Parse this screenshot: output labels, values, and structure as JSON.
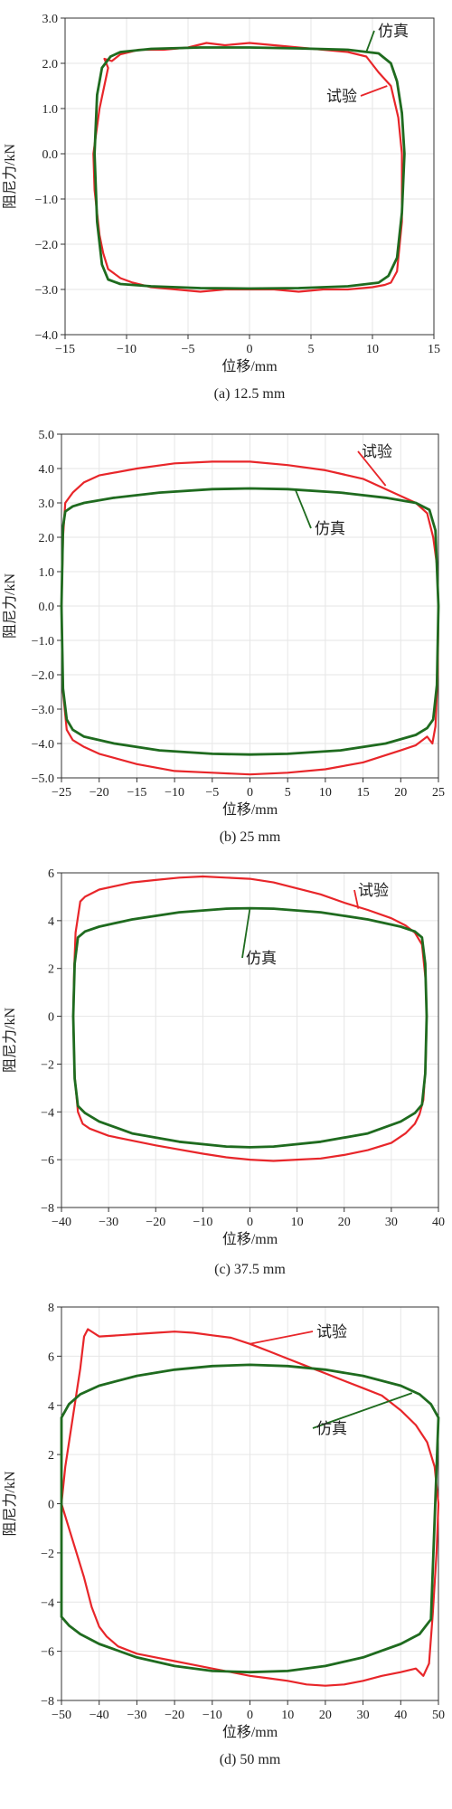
{
  "chart_data": [
    {
      "type": "line",
      "caption": "(a) 12.5 mm",
      "xlabel": "位移/mm",
      "ylabel": "阻尼力/kN",
      "xlim": [
        -15,
        15
      ],
      "ylim": [
        -4,
        3
      ],
      "xticks": [
        "−15",
        "−10",
        "−5",
        "0",
        "5",
        "10",
        "15"
      ],
      "yticks": [
        "−4.0",
        "−3.0",
        "−2.0",
        "−1.0",
        "0.0",
        "1.0",
        "2.0",
        "3.0"
      ],
      "grid": true,
      "annotations": [
        {
          "text": "仿真",
          "series": "sim"
        },
        {
          "text": "试验",
          "series": "exp"
        }
      ],
      "series": [
        {
          "name": "试验",
          "color": "#e8262a",
          "x": [
            -12.7,
            -12.2,
            -11.5,
            -11.8,
            -11.2,
            -10.5,
            -9,
            -7,
            -5,
            -3.5,
            -2,
            0,
            2,
            4,
            6,
            8,
            9.5,
            10.5,
            11.5,
            12.1,
            12.4,
            12.4,
            12.0,
            11.7,
            11.5,
            11.0,
            10,
            8,
            6,
            4,
            2,
            0,
            -2,
            -4,
            -6,
            -8,
            -9.5,
            -10.5,
            -11.5,
            -11.9,
            -12.2,
            -12.6,
            -12.7
          ],
          "y": [
            0.0,
            1.0,
            1.9,
            2.1,
            2.05,
            2.2,
            2.3,
            2.3,
            2.35,
            2.45,
            2.4,
            2.45,
            2.4,
            2.35,
            2.3,
            2.25,
            2.15,
            1.8,
            1.5,
            0.8,
            0.0,
            -1.5,
            -2.6,
            -2.75,
            -2.85,
            -2.9,
            -2.95,
            -3.0,
            -3.0,
            -3.05,
            -3.0,
            -3.0,
            -3.0,
            -3.05,
            -3.0,
            -2.95,
            -2.85,
            -2.75,
            -2.55,
            -2.2,
            -1.8,
            -0.8,
            0.0
          ]
        },
        {
          "name": "仿真",
          "color": "#1f6b1f",
          "x": [
            -12.6,
            -12.4,
            -12.0,
            -11.3,
            -10.5,
            -8,
            -4,
            0,
            4,
            8,
            10.5,
            11.5,
            12.0,
            12.4,
            12.6,
            12.4,
            12.0,
            11.3,
            10.5,
            8,
            4,
            0,
            -4,
            -8,
            -10.5,
            -11.5,
            -12.0,
            -12.4,
            -12.6
          ],
          "y": [
            0.0,
            1.3,
            1.9,
            2.15,
            2.25,
            2.32,
            2.35,
            2.35,
            2.33,
            2.3,
            2.22,
            2.0,
            1.6,
            0.9,
            0.0,
            -1.3,
            -2.3,
            -2.7,
            -2.85,
            -2.93,
            -2.97,
            -2.98,
            -2.97,
            -2.93,
            -2.88,
            -2.78,
            -2.45,
            -1.5,
            0.0
          ]
        }
      ]
    },
    {
      "type": "line",
      "caption": "(b) 25 mm",
      "xlabel": "位移/mm",
      "ylabel": "阻尼力/kN",
      "xlim": [
        -25,
        25
      ],
      "ylim": [
        -5,
        5
      ],
      "xticks": [
        "−25",
        "−20",
        "−15",
        "−10",
        "−5",
        "0",
        "5",
        "10",
        "15",
        "20",
        "25"
      ],
      "yticks": [
        "−5.0",
        "−4.0",
        "−3.0",
        "−2.0",
        "−1.0",
        "0.0",
        "1.0",
        "2.0",
        "3.0",
        "4.0",
        "5.0"
      ],
      "grid": true,
      "annotations": [
        {
          "text": "试验",
          "series": "exp"
        },
        {
          "text": "仿真",
          "series": "sim"
        }
      ],
      "series": [
        {
          "name": "试验",
          "color": "#e8262a",
          "x": [
            -25,
            -24.8,
            -24.5,
            -23.5,
            -22,
            -20,
            -15,
            -10,
            -5,
            0,
            5,
            10,
            15,
            20,
            22,
            23.5,
            24.3,
            24.8,
            25,
            24.9,
            24.6,
            24.2,
            23.5,
            22,
            20,
            15,
            10,
            5,
            0,
            -5,
            -10,
            -15,
            -20,
            -22,
            -23.5,
            -24.3,
            -24.8,
            -25
          ],
          "y": [
            0.0,
            2.0,
            3.0,
            3.3,
            3.6,
            3.8,
            4.0,
            4.15,
            4.2,
            4.2,
            4.1,
            3.95,
            3.7,
            3.2,
            3.0,
            2.7,
            2.0,
            1.2,
            0.0,
            -2.0,
            -3.5,
            -4.0,
            -3.8,
            -4.05,
            -4.2,
            -4.55,
            -4.75,
            -4.85,
            -4.9,
            -4.85,
            -4.8,
            -4.6,
            -4.3,
            -4.1,
            -3.9,
            -3.6,
            -2.5,
            0.0
          ]
        },
        {
          "name": "仿真",
          "color": "#1f6b1f",
          "x": [
            -25,
            -24.8,
            -24.5,
            -23.5,
            -22,
            -18,
            -12,
            -5,
            0,
            5,
            12,
            18,
            22,
            23.8,
            24.6,
            25,
            24.8,
            24.3,
            23.5,
            22,
            18,
            12,
            5,
            0,
            -5,
            -12,
            -18,
            -22,
            -23.5,
            -24.3,
            -24.8,
            -25
          ],
          "y": [
            0.0,
            2.3,
            2.75,
            2.9,
            3.0,
            3.15,
            3.3,
            3.4,
            3.42,
            3.4,
            3.3,
            3.15,
            3.0,
            2.8,
            2.2,
            0.0,
            -2.3,
            -3.3,
            -3.55,
            -3.75,
            -4.0,
            -4.2,
            -4.3,
            -4.32,
            -4.3,
            -4.2,
            -4.0,
            -3.8,
            -3.6,
            -3.3,
            -2.4,
            0.0
          ]
        }
      ]
    },
    {
      "type": "line",
      "caption": "(c) 37.5 mm",
      "xlabel": "位移/mm",
      "ylabel": "阻尼力/kN",
      "xlim": [
        -40,
        40
      ],
      "ylim": [
        -8,
        6
      ],
      "xticks": [
        "−40",
        "−30",
        "−20",
        "−10",
        "0",
        "10",
        "20",
        "30",
        "40"
      ],
      "yticks": [
        "−8",
        "−6",
        "−4",
        "−2",
        "0",
        "2",
        "4",
        "6"
      ],
      "grid": true,
      "annotations": [
        {
          "text": "试验",
          "series": "exp"
        },
        {
          "text": "仿真",
          "series": "sim"
        }
      ],
      "series": [
        {
          "name": "试验",
          "color": "#e8262a",
          "x": [
            -37.5,
            -37.3,
            -37,
            -36,
            -35,
            -32,
            -25,
            -20,
            -15,
            -10,
            -5,
            0,
            5,
            10,
            15,
            20,
            25,
            30,
            33,
            35,
            36.5,
            37.3,
            37.5,
            37.3,
            36.8,
            36,
            35,
            33,
            30,
            25,
            20,
            15,
            10,
            5,
            0,
            -5,
            -10,
            -20,
            -30,
            -34,
            -35.5,
            -36.5,
            -37.2,
            -37.5
          ],
          "y": [
            0.0,
            2.0,
            3.5,
            4.8,
            5.0,
            5.3,
            5.6,
            5.7,
            5.8,
            5.85,
            5.8,
            5.75,
            5.6,
            5.35,
            5.1,
            4.75,
            4.45,
            4.1,
            3.8,
            3.5,
            3.0,
            1.5,
            0.0,
            -2.0,
            -3.5,
            -4.1,
            -4.5,
            -4.9,
            -5.3,
            -5.6,
            -5.8,
            -5.95,
            -6.0,
            -6.05,
            -6.0,
            -5.9,
            -5.75,
            -5.4,
            -5.0,
            -4.7,
            -4.5,
            -4.0,
            -2.5,
            0.0
          ]
        },
        {
          "name": "仿真",
          "color": "#1f6b1f",
          "x": [
            -37.5,
            -37.2,
            -36.5,
            -35,
            -32,
            -25,
            -15,
            -5,
            0,
            5,
            15,
            25,
            32,
            35,
            36.5,
            37.2,
            37.5,
            37.2,
            36.5,
            35,
            32,
            25,
            15,
            5,
            0,
            -5,
            -15,
            -25,
            -32,
            -35,
            -36.5,
            -37.2,
            -37.5
          ],
          "y": [
            0.0,
            2.2,
            3.3,
            3.55,
            3.75,
            4.05,
            4.35,
            4.5,
            4.52,
            4.5,
            4.35,
            4.05,
            3.75,
            3.55,
            3.3,
            2.2,
            0.0,
            -2.4,
            -3.7,
            -4.05,
            -4.4,
            -4.9,
            -5.25,
            -5.45,
            -5.48,
            -5.45,
            -5.25,
            -4.9,
            -4.4,
            -4.05,
            -3.75,
            -2.6,
            0.0
          ]
        }
      ]
    },
    {
      "type": "line",
      "caption": "(d) 50 mm",
      "xlabel": "位移/mm",
      "ylabel": "阻尼力/kN",
      "xlim": [
        -50,
        50
      ],
      "ylim": [
        -8,
        8
      ],
      "xticks": [
        "−50",
        "−40",
        "−30",
        "−20",
        "−10",
        "0",
        "10",
        "20",
        "30",
        "40",
        "50"
      ],
      "yticks": [
        "−8",
        "−6",
        "−4",
        "−2",
        "0",
        "2",
        "4",
        "6",
        "8"
      ],
      "grid": true,
      "annotations": [
        {
          "text": "试验",
          "series": "exp"
        },
        {
          "text": "仿真",
          "series": "sim"
        }
      ],
      "series": [
        {
          "name": "试验",
          "color": "#e8262a",
          "x": [
            -50,
            -49,
            -47,
            -45,
            -44,
            -43,
            -40,
            -35,
            -30,
            -25,
            -20,
            -15,
            -10,
            -5,
            0,
            5,
            10,
            15,
            20,
            25,
            30,
            35,
            40,
            44,
            47,
            49,
            50,
            49.5,
            48.5,
            47.5,
            46,
            44,
            40,
            35,
            30,
            25,
            20,
            15,
            10,
            5,
            0,
            -5,
            -10,
            -15,
            -20,
            -25,
            -30,
            -35,
            -38,
            -40,
            -42,
            -44,
            -46,
            -48,
            -50
          ],
          "y": [
            0.0,
            1.5,
            3.5,
            5.5,
            6.8,
            7.1,
            6.8,
            6.85,
            6.9,
            6.95,
            7.0,
            6.95,
            6.85,
            6.75,
            6.5,
            6.2,
            5.9,
            5.6,
            5.3,
            5.0,
            4.7,
            4.4,
            3.8,
            3.2,
            2.5,
            1.5,
            0.0,
            -2.0,
            -4.5,
            -6.5,
            -7.0,
            -6.7,
            -6.85,
            -7.0,
            -7.2,
            -7.35,
            -7.4,
            -7.35,
            -7.2,
            -7.1,
            -7.0,
            -6.85,
            -6.7,
            -6.55,
            -6.4,
            -6.25,
            -6.1,
            -5.8,
            -5.4,
            -5.0,
            -4.2,
            -3.0,
            -2.0,
            -1.0,
            0.0
          ]
        },
        {
          "name": "仿真",
          "color": "#1f6b1f",
          "x": [
            -50,
            -48,
            -45,
            -40,
            -30,
            -20,
            -10,
            0,
            10,
            20,
            30,
            40,
            45,
            48,
            50,
            48,
            45,
            40,
            30,
            20,
            10,
            0,
            -10,
            -20,
            -30,
            -40,
            -45,
            -48,
            -50
          ],
          "y": [
            3.5,
            4.05,
            4.45,
            4.8,
            5.2,
            5.45,
            5.6,
            5.65,
            5.6,
            5.45,
            5.2,
            4.8,
            4.45,
            4.05,
            3.5,
            -4.7,
            -5.3,
            -5.7,
            -6.25,
            -6.6,
            -6.8,
            -6.85,
            -6.8,
            -6.6,
            -6.25,
            -5.7,
            -5.3,
            -4.95,
            -4.6
          ]
        }
      ]
    }
  ]
}
